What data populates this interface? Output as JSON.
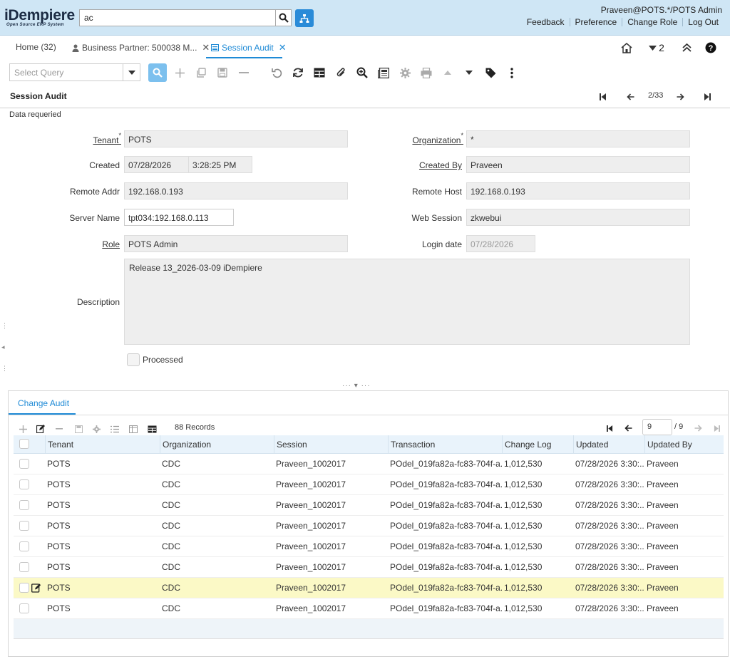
{
  "header": {
    "logo_main": "iDempiere",
    "logo_sub": "Open Source ERP System",
    "search_value": "ac",
    "user": "Praveen@POTS.*/POTS Admin",
    "links": [
      "Feedback",
      "Preference",
      "Change Role",
      "Log Out"
    ]
  },
  "tabs": {
    "home": "Home (32)",
    "bp": "Business Partner: 500038 M...",
    "session": "Session Audit",
    "badge": "2"
  },
  "toolbar": {
    "query_placeholder": "Select Query"
  },
  "window": {
    "title": "Session Audit",
    "record_count": "2/33",
    "status": "Data requeried"
  },
  "form": {
    "tenant_label": "Tenant",
    "tenant_value": "POTS",
    "org_label": "Organization",
    "org_value": "*",
    "created_label": "Created",
    "created_date": "07/28/2026",
    "created_time": "3:28:25 PM",
    "createdby_label": "Created By",
    "createdby_value": "Praveen",
    "remoteaddr_label": "Remote Addr",
    "remoteaddr_value": "192.168.0.193",
    "remotehost_label": "Remote Host",
    "remotehost_value": "192.168.0.193",
    "servername_label": "Server Name",
    "servername_value": "tpt034:192.168.0.113",
    "websession_label": "Web Session",
    "websession_value": "zkwebui",
    "role_label": "Role",
    "role_value": "POTS Admin",
    "logindate_label": "Login date",
    "logindate_value": "07/28/2026",
    "description_label": "Description",
    "description_value": "Release 13_2026-03-09 iDempiere",
    "processed_label": "Processed"
  },
  "detail": {
    "tab": "Change Audit",
    "records": "88 Records",
    "page_input": "9",
    "page_of": "/ 9",
    "columns": [
      "Tenant",
      "Organization",
      "Session",
      "Transaction",
      "Change Log",
      "Updated",
      "Updated By"
    ],
    "rows": [
      [
        "POTS",
        "CDC",
        "Praveen_1002017",
        "POdel_019fa82a-fc83-704f-a...",
        "1,012,530",
        "07/28/2026 3:30:...",
        "Praveen"
      ],
      [
        "POTS",
        "CDC",
        "Praveen_1002017",
        "POdel_019fa82a-fc83-704f-a...",
        "1,012,530",
        "07/28/2026 3:30:...",
        "Praveen"
      ],
      [
        "POTS",
        "CDC",
        "Praveen_1002017",
        "POdel_019fa82a-fc83-704f-a...",
        "1,012,530",
        "07/28/2026 3:30:...",
        "Praveen"
      ],
      [
        "POTS",
        "CDC",
        "Praveen_1002017",
        "POdel_019fa82a-fc83-704f-a...",
        "1,012,530",
        "07/28/2026 3:30:...",
        "Praveen"
      ],
      [
        "POTS",
        "CDC",
        "Praveen_1002017",
        "POdel_019fa82a-fc83-704f-a...",
        "1,012,530",
        "07/28/2026 3:30:...",
        "Praveen"
      ],
      [
        "POTS",
        "CDC",
        "Praveen_1002017",
        "POdel_019fa82a-fc83-704f-a...",
        "1,012,530",
        "07/28/2026 3:30:...",
        "Praveen"
      ],
      [
        "POTS",
        "CDC",
        "Praveen_1002017",
        "POdel_019fa82a-fc83-704f-a...",
        "1,012,530",
        "07/28/2026 3:30:...",
        "Praveen"
      ],
      [
        "POTS",
        "CDC",
        "Praveen_1002017",
        "POdel_019fa82a-fc83-704f-a...",
        "1,012,530",
        "07/28/2026 3:30:...",
        "Praveen"
      ]
    ],
    "selected_row": 6
  },
  "colors": {
    "header_bg": "#cfe6f5",
    "accent": "#1e8ad6",
    "selected_row": "#fbf9c6"
  }
}
